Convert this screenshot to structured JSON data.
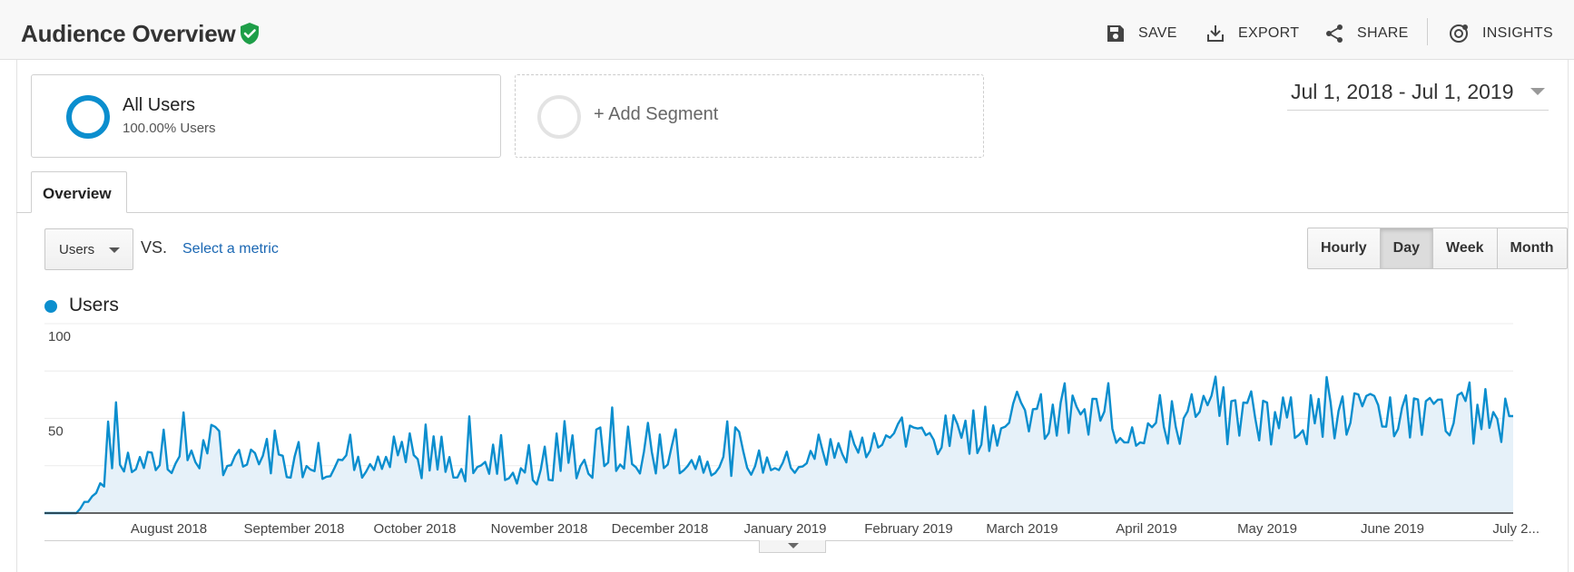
{
  "header": {
    "title": "Audience Overview",
    "actions": [
      {
        "label": "SAVE",
        "icon": "save-icon"
      },
      {
        "label": "EXPORT",
        "icon": "export-icon"
      },
      {
        "label": "SHARE",
        "icon": "share-icon"
      },
      {
        "label": "INSIGHTS",
        "icon": "insights-icon"
      }
    ]
  },
  "segments": {
    "active": {
      "name": "All Users",
      "sub": "100.00% Users",
      "color": "#0b8ece"
    },
    "add_label": "+ Add Segment"
  },
  "date_range": "Jul 1, 2018 - Jul 1, 2019",
  "tabs": [
    {
      "label": "Overview",
      "active": true
    }
  ],
  "controls": {
    "metric": "Users",
    "vs_label": "VS.",
    "select_metric": "Select a metric",
    "granularity": [
      {
        "label": "Hourly",
        "active": false
      },
      {
        "label": "Day",
        "active": true
      },
      {
        "label": "Week",
        "active": false
      },
      {
        "label": "Month",
        "active": false
      }
    ]
  },
  "legend": {
    "label": "Users",
    "color": "#0b8ece"
  },
  "chart_data": {
    "type": "area",
    "series": [
      {
        "name": "Users",
        "color": "#0b8ece"
      }
    ],
    "ylim": [
      0,
      100
    ],
    "yticks": [
      {
        "label": "100",
        "value": 100
      },
      {
        "label": "50",
        "value": 50
      }
    ],
    "x_ticks": [
      "August 2018",
      "September 2018",
      "October 2018",
      "November 2018",
      "December 2018",
      "January 2019",
      "February 2019",
      "March 2019",
      "April 2019",
      "May 2019",
      "June 2019",
      "July 2..."
    ],
    "monthly_points": [
      {
        "month": "Jul 2018",
        "typical": 22,
        "peak": 63
      },
      {
        "month": "Aug 2018",
        "typical": 28,
        "peak": 55
      },
      {
        "month": "Sep 2018",
        "typical": 25,
        "peak": 56
      },
      {
        "month": "Oct 2018",
        "typical": 24,
        "peak": 50
      },
      {
        "month": "Nov 2018",
        "typical": 20,
        "peak": 62
      },
      {
        "month": "Dec 2018",
        "typical": 28,
        "peak": 57
      },
      {
        "month": "Jan 2019",
        "typical": 26,
        "peak": 50
      },
      {
        "month": "Feb 2019",
        "typical": 38,
        "peak": 52
      },
      {
        "month": "Mar 2019",
        "typical": 48,
        "peak": 68
      },
      {
        "month": "Apr 2019",
        "typical": 45,
        "peak": 70
      },
      {
        "month": "May 2019",
        "typical": 50,
        "peak": 74
      },
      {
        "month": "Jun 2019",
        "typical": 50,
        "peak": 70
      }
    ],
    "grid": true
  }
}
